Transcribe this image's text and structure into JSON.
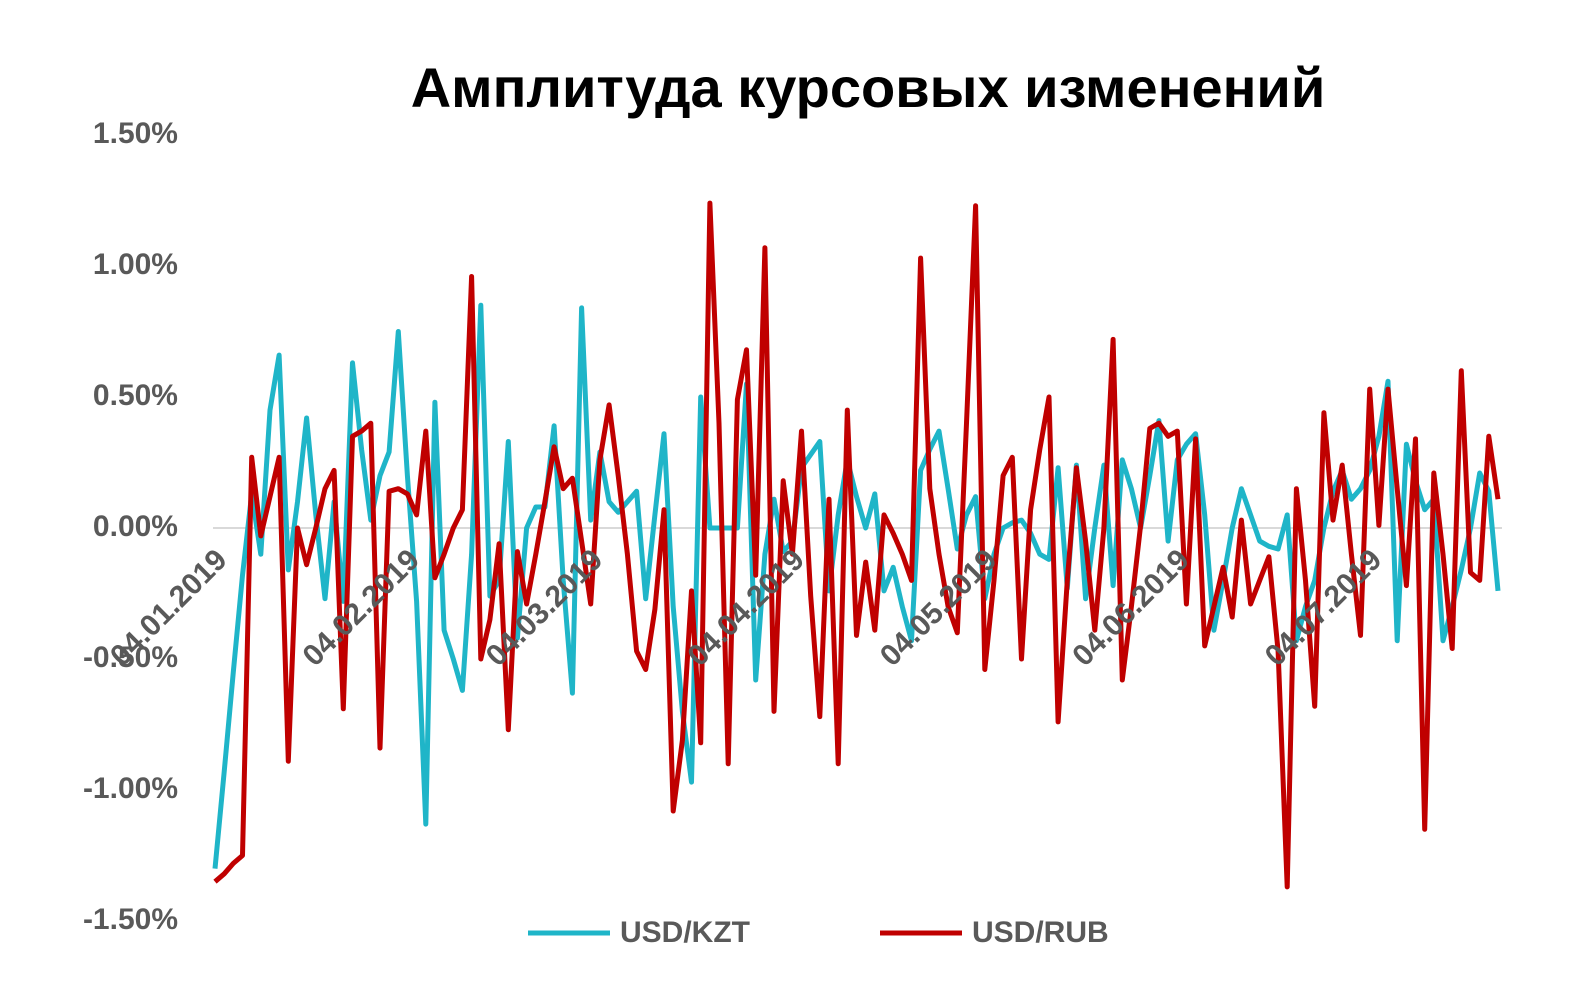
{
  "chart_data": {
    "type": "line",
    "title": "Амплитуда курсовых изменений",
    "categories": [
      "04.01.2019",
      null,
      null,
      null,
      null,
      null,
      null,
      null,
      null,
      null,
      null,
      null,
      null,
      null,
      null,
      null,
      null,
      null,
      null,
      null,
      null,
      "04.02.2019",
      null,
      null,
      null,
      null,
      null,
      null,
      null,
      null,
      null,
      null,
      null,
      null,
      null,
      null,
      null,
      null,
      null,
      null,
      null,
      "04.03.2019",
      null,
      null,
      null,
      null,
      null,
      null,
      null,
      null,
      null,
      null,
      null,
      null,
      null,
      null,
      null,
      null,
      null,
      null,
      null,
      null,
      null,
      "04.04.2019",
      null,
      null,
      null,
      null,
      null,
      null,
      null,
      null,
      null,
      null,
      null,
      null,
      null,
      null,
      null,
      null,
      null,
      null,
      null,
      null,
      "04.05.2019",
      null,
      null,
      null,
      null,
      null,
      null,
      null,
      null,
      null,
      null,
      null,
      null,
      null,
      null,
      null,
      null,
      null,
      null,
      null,
      null,
      "04.06.2019",
      null,
      null,
      null,
      null,
      null,
      null,
      null,
      null,
      null,
      null,
      null,
      null,
      null,
      null,
      null,
      null,
      null,
      null,
      null,
      null,
      "04.07.2019",
      null,
      null,
      null,
      null,
      null,
      null,
      null,
      null,
      null,
      null,
      null,
      null,
      null,
      null
    ],
    "series": [
      {
        "name": "USD/KZT",
        "color": "#1fb5c8",
        "values": [
          -1.3,
          -0.93,
          -0.55,
          -0.18,
          0.13,
          -0.1,
          0.45,
          0.66,
          -0.16,
          0.1,
          0.42,
          0.05,
          -0.27,
          0.1,
          -0.28,
          0.63,
          0.3,
          0.03,
          0.2,
          0.29,
          0.75,
          0.2,
          -0.28,
          -1.13,
          0.48,
          -0.39,
          -0.5,
          -0.62,
          -0.1,
          0.85,
          -0.26,
          -0.2,
          0.33,
          -0.42,
          0,
          0.08,
          0.08,
          0.39,
          -0.2,
          -0.63,
          0.84,
          0.03,
          0.29,
          0.1,
          0.06,
          0.1,
          0.14,
          -0.27,
          0.05,
          0.36,
          -0.3,
          -0.7,
          -0.97,
          0.5,
          0,
          0,
          0,
          0,
          0.55,
          -0.58,
          -0.1,
          0.11,
          -0.09,
          -0.05,
          0.23,
          0.28,
          0.33,
          -0.24,
          0.05,
          0.26,
          0.12,
          0,
          0.13,
          -0.24,
          -0.15,
          -0.3,
          -0.43,
          0.22,
          0.3,
          0.37,
          0.15,
          -0.08,
          0.05,
          0.12,
          -0.27,
          -0.1,
          0,
          0.02,
          0.03,
          -0.02,
          -0.1,
          -0.12,
          0.23,
          -0.23,
          0.24,
          -0.27,
          0,
          0.24,
          -0.22,
          0.26,
          0.15,
          0,
          0.2,
          0.41,
          -0.05,
          0.26,
          0.32,
          0.36,
          0.05,
          -0.39,
          -0.2,
          0,
          0.15,
          0.05,
          -0.05,
          -0.07,
          -0.08,
          0.05,
          -0.43,
          -0.3,
          -0.2,
          0,
          0.14,
          0.22,
          0.11,
          0.15,
          0.22,
          0.35,
          0.56,
          -0.43,
          0.32,
          0.18,
          0.07,
          0.11,
          -0.43,
          -0.3,
          -0.16,
          0,
          0.21,
          0.14,
          -0.24
        ]
      },
      {
        "name": "USD/RUB",
        "color": "#c00000",
        "values": [
          -1.35,
          -1.32,
          -1.28,
          -1.25,
          0.27,
          -0.03,
          0.12,
          0.27,
          -0.89,
          0,
          -0.14,
          0,
          0.15,
          0.22,
          -0.69,
          0.35,
          0.37,
          0.4,
          -0.84,
          0.14,
          0.15,
          0.13,
          0.05,
          0.37,
          -0.19,
          -0.1,
          0,
          0.07,
          0.96,
          -0.5,
          -0.35,
          -0.06,
          -0.77,
          -0.09,
          -0.29,
          -0.1,
          0.1,
          0.31,
          0.15,
          0.19,
          -0.05,
          -0.29,
          0.26,
          0.47,
          0.2,
          -0.1,
          -0.47,
          -0.54,
          -0.31,
          0.07,
          -1.08,
          -0.81,
          -0.24,
          -0.82,
          1.24,
          0.4,
          -0.9,
          0.49,
          0.68,
          -0.18,
          1.07,
          -0.7,
          0.18,
          -0.1,
          0.37,
          -0.26,
          -0.72,
          0.11,
          -0.9,
          0.45,
          -0.41,
          -0.13,
          -0.39,
          0.05,
          -0.02,
          -0.1,
          -0.2,
          1.03,
          0.15,
          -0.1,
          -0.3,
          -0.4,
          0.4,
          1.23,
          -0.54,
          -0.2,
          0.2,
          0.27,
          -0.5,
          0.07,
          0.3,
          0.5,
          -0.74,
          -0.2,
          0.23,
          -0.05,
          -0.39,
          0,
          0.72,
          -0.58,
          -0.3,
          0.01,
          0.38,
          0.4,
          0.35,
          0.37,
          -0.29,
          0.34,
          -0.45,
          -0.3,
          -0.15,
          -0.34,
          0.03,
          -0.29,
          -0.2,
          -0.11,
          -0.47,
          -1.37,
          0.15,
          -0.2,
          -0.68,
          0.44,
          0.03,
          0.24,
          -0.1,
          -0.41,
          0.53,
          0.01,
          0.53,
          0.15,
          -0.22,
          0.34,
          -1.15,
          0.21,
          -0.1,
          -0.46,
          0.6,
          -0.17,
          -0.2,
          0.35,
          0.11
        ]
      }
    ],
    "ylim": [
      -1.5,
      1.5
    ],
    "yticks": [
      {
        "value": -1.5,
        "label": "-1.50%"
      },
      {
        "value": -1,
        "label": "-1.00%"
      },
      {
        "value": -0.5,
        "label": "-0.50%"
      },
      {
        "value": 0,
        "label": "0.00%"
      },
      {
        "value": 0.5,
        "label": "0.50%"
      },
      {
        "value": 1,
        "label": "1.00%"
      },
      {
        "value": 1.5,
        "label": "1.50%"
      }
    ],
    "grid": false
  }
}
